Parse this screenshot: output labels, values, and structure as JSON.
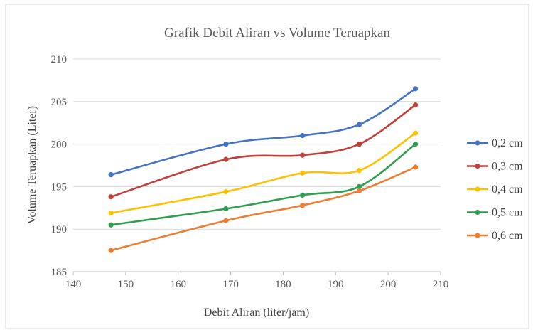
{
  "chart_data": {
    "type": "line",
    "title": "Grafik Debit Aliran vs Volume Teruapkan",
    "xlabel": "Debit Aliran (liter/jam)",
    "ylabel": "Volume Teruapkan (Liter)",
    "xlim": [
      140,
      210
    ],
    "ylim": [
      185,
      210
    ],
    "xticks": [
      "140",
      "150",
      "160",
      "170",
      "180",
      "190",
      "200",
      "210"
    ],
    "yticks": [
      "185",
      "190",
      "195",
      "200",
      "205",
      "210"
    ],
    "grid": "horizontal",
    "legend_position": "right",
    "smooth": true,
    "series": [
      {
        "name": "0,2 cm",
        "color": "#4472C4",
        "x": [
          147.2,
          169.1,
          183.7,
          194.5,
          205.2
        ],
        "y": [
          196.4,
          200.0,
          201.0,
          202.3,
          206.5
        ]
      },
      {
        "name": "0,3 cm",
        "color": "#C0403A",
        "x": [
          147.2,
          169.1,
          183.7,
          194.5,
          205.2
        ],
        "y": [
          193.8,
          198.2,
          198.7,
          200.0,
          204.6
        ]
      },
      {
        "name": "0,4 cm",
        "color": "#FFC000",
        "x": [
          147.2,
          169.1,
          183.7,
          194.5,
          205.2
        ],
        "y": [
          191.9,
          194.4,
          196.6,
          196.9,
          201.3
        ]
      },
      {
        "name": "0,5 cm",
        "color": "#2E9E4F",
        "x": [
          147.2,
          169.1,
          183.7,
          194.5,
          205.2
        ],
        "y": [
          190.5,
          192.4,
          194.0,
          195.0,
          200.0
        ]
      },
      {
        "name": "0,6 cm",
        "color": "#ED7D31",
        "x": [
          147.2,
          169.1,
          183.7,
          194.5,
          205.2
        ],
        "y": [
          187.5,
          191.0,
          192.8,
          194.5,
          197.3
        ]
      }
    ]
  }
}
